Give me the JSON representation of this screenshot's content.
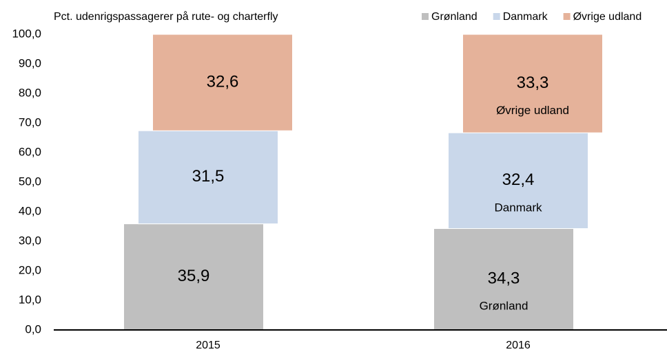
{
  "chart_data": {
    "type": "bar",
    "stacked": true,
    "y_axis_label": "Pct. udenrigspassagerer på rute- og charterfly",
    "categories": [
      "2015",
      "2016"
    ],
    "series": [
      {
        "name": "Grønland",
        "color": "#bfbfbf",
        "values": [
          35.9,
          34.3
        ],
        "value_labels": [
          "35,9",
          "34,3"
        ]
      },
      {
        "name": "Danmark",
        "color": "#c9d7ea",
        "values": [
          31.5,
          32.4
        ],
        "value_labels": [
          "31,5",
          "32,4"
        ]
      },
      {
        "name": "Øvrige udland",
        "color": "#e5b29a",
        "values": [
          32.6,
          33.3
        ],
        "value_labels": [
          "32,6",
          "33,3"
        ]
      }
    ],
    "annotations": [
      {
        "text": "Grønland",
        "series": 0,
        "category": 1
      },
      {
        "text": "Danmark",
        "series": 1,
        "category": 1
      },
      {
        "text": "Øvrige udland",
        "series": 2,
        "category": 1
      }
    ],
    "ylim": [
      0,
      100
    ],
    "yticks": [
      {
        "value": 0,
        "label": "0,0"
      },
      {
        "value": 10,
        "label": "10,0"
      },
      {
        "value": 20,
        "label": "20,0"
      },
      {
        "value": 30,
        "label": "30,0"
      },
      {
        "value": 40,
        "label": "40,0"
      },
      {
        "value": 50,
        "label": "50,0"
      },
      {
        "value": 60,
        "label": "60,0"
      },
      {
        "value": 70,
        "label": "70,0"
      },
      {
        "value": 80,
        "label": "80,0"
      },
      {
        "value": 90,
        "label": "90,0"
      },
      {
        "value": 100,
        "label": "100,0"
      }
    ],
    "grid": false,
    "legend": "top-right"
  }
}
